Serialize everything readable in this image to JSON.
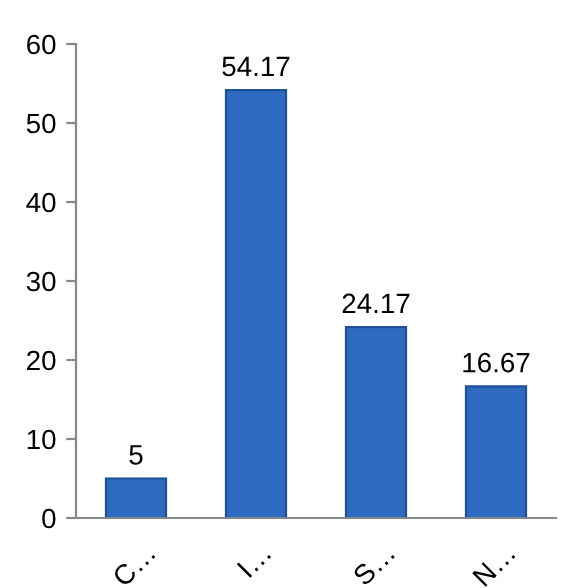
{
  "chart_data": {
    "type": "bar",
    "categories": [
      "C…",
      "I…",
      "S…",
      "N…"
    ],
    "values": [
      5,
      54.17,
      24.17,
      16.67
    ],
    "color": "#2e6bc0",
    "ylim": [
      0,
      60
    ],
    "yticks": [
      0,
      10,
      20,
      30,
      40,
      50,
      60
    ],
    "data_labels": true,
    "grid": false
  }
}
